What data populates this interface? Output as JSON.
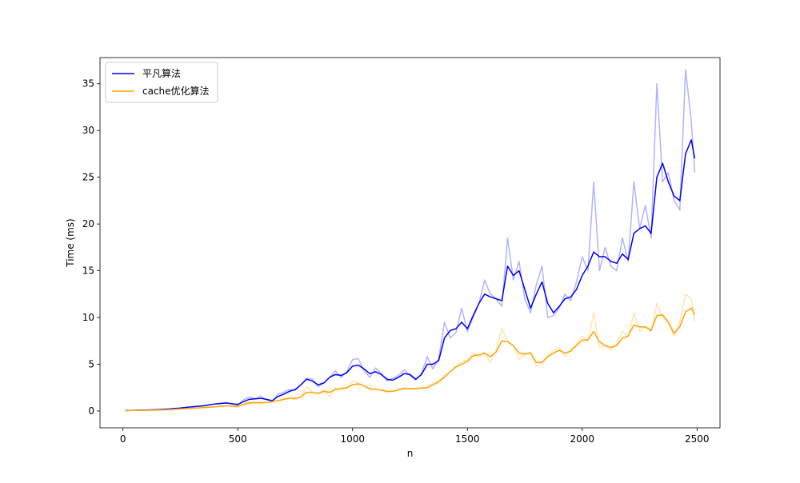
{
  "chart_data": {
    "type": "line",
    "title": "",
    "xlabel": "n",
    "ylabel": "Time (ms)",
    "xlim": [
      -100,
      2600
    ],
    "ylim": [
      -1.8,
      37.8
    ],
    "x_ticks": [
      0,
      500,
      1000,
      1500,
      2000,
      2500
    ],
    "y_ticks": [
      0,
      5,
      10,
      15,
      20,
      25,
      30,
      35
    ],
    "grid": false,
    "legend_position": "top-left",
    "series": [
      {
        "name": "平凡算法",
        "color": "#0000ff",
        "raw_alpha": 0.3,
        "x": [
          10,
          50,
          100,
          150,
          200,
          250,
          300,
          350,
          400,
          450,
          500,
          525,
          550,
          575,
          600,
          625,
          650,
          675,
          700,
          725,
          750,
          775,
          800,
          825,
          850,
          875,
          900,
          925,
          950,
          975,
          1000,
          1025,
          1050,
          1075,
          1100,
          1125,
          1150,
          1175,
          1200,
          1225,
          1250,
          1275,
          1300,
          1325,
          1350,
          1375,
          1400,
          1425,
          1450,
          1475,
          1500,
          1525,
          1550,
          1575,
          1600,
          1625,
          1650,
          1675,
          1700,
          1725,
          1750,
          1775,
          1800,
          1825,
          1850,
          1875,
          1900,
          1925,
          1950,
          1975,
          2000,
          2025,
          2050,
          2075,
          2100,
          2125,
          2150,
          2175,
          2200,
          2225,
          2250,
          2275,
          2300,
          2325,
          2350,
          2375,
          2400,
          2425,
          2450,
          2475,
          2490
        ],
        "raw": [
          0.05,
          0.07,
          0.1,
          0.14,
          0.2,
          0.3,
          0.45,
          0.55,
          0.75,
          0.9,
          0.6,
          1.2,
          1.5,
          1.3,
          1.6,
          1.2,
          1.0,
          1.8,
          2.0,
          2.3,
          2.2,
          2.8,
          3.5,
          3.4,
          2.6,
          3.0,
          3.6,
          4.3,
          3.6,
          4.2,
          5.5,
          5.6,
          4.3,
          3.6,
          4.6,
          4.0,
          3.2,
          3.5,
          3.8,
          4.4,
          3.8,
          3.3,
          4.0,
          5.8,
          4.5,
          5.6,
          9.5,
          7.8,
          8.4,
          11.0,
          8.5,
          10.0,
          11.5,
          14.0,
          12.5,
          12.0,
          11.2,
          18.5,
          14.0,
          16.0,
          12.0,
          10.5,
          13.5,
          15.5,
          10.0,
          10.2,
          11.0,
          12.5,
          11.8,
          13.8,
          16.5,
          15.0,
          24.5,
          15.0,
          17.5,
          15.5,
          15.0,
          18.5,
          16.0,
          24.5,
          19.5,
          22.0,
          18.5,
          35.0,
          24.5,
          25.5,
          22.5,
          21.5,
          36.5,
          31.0,
          25.5
        ],
        "smoothed": [
          0.05,
          0.07,
          0.1,
          0.15,
          0.22,
          0.32,
          0.45,
          0.55,
          0.75,
          0.85,
          0.7,
          1.0,
          1.25,
          1.3,
          1.35,
          1.25,
          1.1,
          1.55,
          1.8,
          2.1,
          2.3,
          2.8,
          3.4,
          3.2,
          2.8,
          3.0,
          3.6,
          3.9,
          3.8,
          4.1,
          4.8,
          4.9,
          4.5,
          4.0,
          4.2,
          3.9,
          3.4,
          3.3,
          3.6,
          4.0,
          3.9,
          3.4,
          3.9,
          5.0,
          5.0,
          5.4,
          7.8,
          8.6,
          8.8,
          9.5,
          8.8,
          10.2,
          11.5,
          12.5,
          12.2,
          12.0,
          11.8,
          15.5,
          14.5,
          15.0,
          13.0,
          11.0,
          12.5,
          13.8,
          11.5,
          10.5,
          11.2,
          12.0,
          12.2,
          13.0,
          14.5,
          15.5,
          17.0,
          16.5,
          16.5,
          16.0,
          15.8,
          16.8,
          16.2,
          19.0,
          19.5,
          19.8,
          19.0,
          25.0,
          26.5,
          24.5,
          23.0,
          22.5,
          27.5,
          29.0,
          27.0
        ]
      },
      {
        "name": "cache优化算法",
        "color": "#ffa500",
        "raw_alpha": 0.3,
        "x": [
          10,
          50,
          100,
          150,
          200,
          250,
          300,
          350,
          400,
          450,
          500,
          525,
          550,
          575,
          600,
          625,
          650,
          675,
          700,
          725,
          750,
          775,
          800,
          825,
          850,
          875,
          900,
          925,
          950,
          975,
          1000,
          1025,
          1050,
          1075,
          1100,
          1125,
          1150,
          1175,
          1200,
          1225,
          1250,
          1275,
          1300,
          1325,
          1350,
          1375,
          1400,
          1425,
          1450,
          1475,
          1500,
          1525,
          1550,
          1575,
          1600,
          1625,
          1650,
          1675,
          1700,
          1725,
          1750,
          1775,
          1800,
          1825,
          1850,
          1875,
          1900,
          1925,
          1950,
          1975,
          2000,
          2025,
          2050,
          2075,
          2100,
          2125,
          2150,
          2175,
          2200,
          2225,
          2250,
          2275,
          2300,
          2325,
          2350,
          2375,
          2400,
          2425,
          2450,
          2475,
          2490
        ],
        "raw": [
          0.04,
          0.06,
          0.08,
          0.1,
          0.15,
          0.22,
          0.3,
          0.38,
          0.45,
          0.6,
          0.4,
          0.8,
          1.0,
          0.9,
          0.8,
          0.9,
          1.0,
          1.1,
          1.3,
          1.4,
          1.2,
          1.5,
          2.6,
          2.0,
          1.8,
          2.3,
          1.5,
          2.5,
          2.3,
          2.4,
          3.2,
          3.0,
          2.7,
          2.2,
          2.4,
          2.2,
          2.0,
          2.1,
          2.3,
          2.5,
          2.3,
          2.4,
          2.5,
          2.5,
          3.0,
          3.2,
          3.8,
          4.2,
          4.8,
          5.2,
          5.5,
          6.2,
          5.8,
          6.1,
          5.2,
          6.5,
          8.8,
          7.5,
          7.0,
          5.5,
          6.0,
          6.3,
          4.8,
          5.2,
          6.0,
          6.5,
          6.8,
          5.8,
          6.5,
          7.2,
          8.0,
          7.5,
          10.5,
          6.8,
          7.0,
          6.5,
          7.2,
          8.5,
          8.0,
          10.5,
          8.5,
          9.0,
          8.5,
          11.5,
          10.0,
          9.5,
          8.0,
          9.5,
          12.5,
          12.0,
          9.5
        ],
        "smoothed": [
          0.04,
          0.06,
          0.08,
          0.1,
          0.15,
          0.22,
          0.3,
          0.36,
          0.44,
          0.55,
          0.5,
          0.7,
          0.85,
          0.88,
          0.88,
          0.9,
          1.0,
          1.1,
          1.25,
          1.35,
          1.35,
          1.5,
          2.0,
          2.0,
          1.9,
          2.1,
          2.0,
          2.3,
          2.4,
          2.5,
          2.8,
          2.9,
          2.7,
          2.4,
          2.3,
          2.25,
          2.1,
          2.1,
          2.25,
          2.4,
          2.4,
          2.4,
          2.45,
          2.5,
          2.8,
          3.1,
          3.6,
          4.2,
          4.7,
          5.0,
          5.3,
          5.9,
          6.0,
          6.2,
          5.8,
          6.3,
          7.5,
          7.4,
          7.0,
          6.2,
          6.1,
          6.2,
          5.2,
          5.2,
          5.8,
          6.2,
          6.5,
          6.2,
          6.4,
          7.0,
          7.6,
          7.6,
          8.5,
          7.4,
          7.0,
          6.8,
          7.0,
          7.8,
          8.0,
          9.2,
          9.0,
          9.0,
          8.6,
          10.2,
          10.3,
          9.5,
          8.3,
          9.0,
          10.6,
          11.0,
          10.3
        ]
      }
    ]
  }
}
